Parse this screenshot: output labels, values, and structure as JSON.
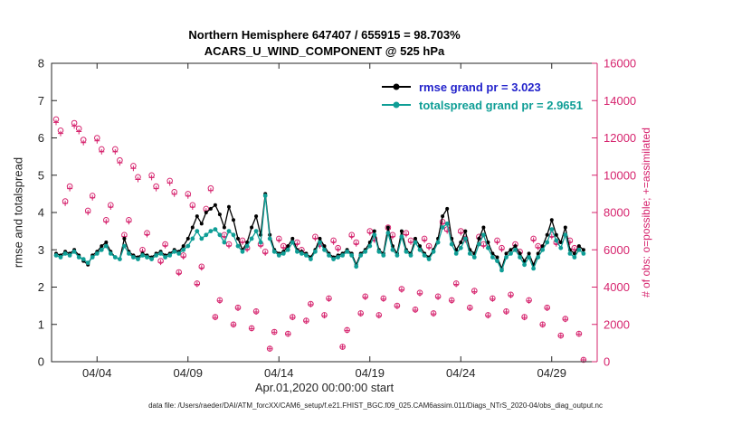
{
  "colors": {
    "rmse": "#000000",
    "totalspread": "#0f9e96",
    "obs": "#d6246e",
    "axis": "#262626",
    "background": "#ffffff"
  },
  "chart_data": {
    "type": "line+scatter",
    "title1": "Northern Hemisphere 647407 / 655915 = 98.703%",
    "title2": "ACARS_U_WIND_COMPONENT @ 525 hPa",
    "ylabel_left": "rmse and totalspread",
    "ylabel_right": "# of obs: o=possible; +=assimilated",
    "xlabel": "Apr.01,2020 00:00:00 start",
    "caption": "data file: /Users/raeder/DAI/ATM_forcXX/CAM6_setup/f.e21.FHIST_BGC.f09_025.CAM6assim.011/Diags_NTrS_2020-04/obs_diag_output.nc",
    "legend": [
      {
        "label": "rmse grand pr = 3.023",
        "line_color": "#000000",
        "text_color": "#2323cb"
      },
      {
        "label": "totalspread grand pr = 2.9651",
        "line_color": "#0f9e96",
        "text_color": "#0f9e96"
      }
    ],
    "xlim": [
      1.5,
      31.5
    ],
    "left_ylim": [
      0,
      8
    ],
    "right_ylim": [
      0,
      16000
    ],
    "x_start": 1.75,
    "x_step": 0.25,
    "x_tick_days": [
      4,
      9,
      14,
      19,
      24,
      29
    ],
    "x_tick_labels": [
      "04/04",
      "04/09",
      "04/14",
      "04/19",
      "04/24",
      "04/29"
    ],
    "left_ticks": [
      0,
      1,
      2,
      3,
      4,
      5,
      6,
      7,
      8
    ],
    "right_ticks": [
      0,
      2000,
      4000,
      6000,
      8000,
      10000,
      12000,
      14000,
      16000
    ],
    "assimilated_fraction": 0.987,
    "rmse": [
      2.9,
      2.85,
      2.95,
      2.9,
      3.0,
      2.85,
      2.7,
      2.6,
      2.85,
      2.95,
      3.1,
      3.2,
      2.95,
      2.8,
      2.75,
      3.3,
      2.95,
      2.85,
      2.8,
      2.9,
      2.85,
      2.8,
      2.9,
      2.95,
      2.85,
      2.9,
      3.0,
      2.95,
      3.1,
      3.3,
      3.6,
      3.9,
      3.7,
      4.0,
      4.1,
      4.2,
      3.95,
      3.6,
      4.15,
      3.8,
      3.3,
      3.0,
      3.2,
      3.6,
      3.9,
      3.4,
      4.5,
      3.4,
      3.0,
      2.9,
      2.95,
      3.1,
      3.3,
      3.0,
      2.95,
      2.9,
      2.8,
      3.0,
      3.3,
      3.1,
      2.9,
      2.8,
      2.85,
      2.9,
      3.0,
      2.9,
      2.6,
      2.9,
      3.0,
      3.2,
      3.5,
      3.0,
      2.9,
      3.6,
      3.1,
      2.9,
      3.5,
      3.0,
      2.9,
      3.3,
      3.1,
      2.9,
      2.8,
      3.0,
      3.3,
      3.9,
      4.1,
      3.3,
      3.0,
      3.2,
      3.5,
      3.0,
      2.9,
      3.3,
      3.6,
      3.2,
      2.9,
      2.8,
      2.5,
      2.9,
      3.0,
      3.1,
      2.9,
      2.7,
      2.9,
      2.6,
      2.9,
      3.1,
      3.4,
      3.8,
      3.4,
      3.2,
      3.6,
      3.0,
      2.9,
      3.1,
      3.0
    ],
    "totalspread": [
      2.85,
      2.8,
      2.9,
      2.85,
      2.95,
      2.8,
      2.75,
      2.65,
      2.8,
      2.9,
      3.0,
      3.1,
      2.9,
      2.8,
      2.75,
      3.1,
      2.9,
      2.8,
      2.75,
      2.85,
      2.8,
      2.75,
      2.85,
      2.9,
      2.8,
      2.85,
      2.95,
      2.9,
      3.0,
      3.1,
      3.3,
      3.5,
      3.3,
      3.4,
      3.5,
      3.55,
      3.4,
      3.2,
      3.5,
      3.4,
      3.1,
      2.95,
      3.1,
      3.3,
      3.5,
      3.2,
      4.45,
      3.3,
      2.95,
      2.85,
      2.9,
      3.0,
      3.2,
      2.95,
      2.9,
      2.85,
      2.75,
      2.95,
      3.2,
      3.0,
      2.85,
      2.75,
      2.8,
      2.85,
      2.95,
      2.85,
      2.55,
      2.85,
      2.95,
      3.1,
      3.4,
      2.95,
      2.85,
      3.45,
      3.0,
      2.85,
      3.35,
      2.95,
      2.85,
      3.2,
      3.0,
      2.85,
      2.75,
      2.95,
      3.2,
      3.6,
      3.7,
      3.15,
      2.9,
      3.05,
      3.3,
      2.9,
      2.8,
      3.15,
      3.4,
      3.05,
      2.8,
      2.7,
      2.45,
      2.8,
      2.9,
      3.0,
      2.8,
      2.6,
      2.8,
      2.5,
      2.8,
      3.0,
      3.2,
      3.55,
      3.25,
      3.05,
      3.4,
      2.9,
      2.8,
      3.0,
      2.9
    ],
    "possible_obs": [
      13000,
      12400,
      8600,
      9400,
      12800,
      12500,
      11900,
      8100,
      8900,
      12000,
      11400,
      7600,
      8400,
      11400,
      10800,
      6800,
      7600,
      10500,
      9900,
      6000,
      6900,
      10000,
      9400,
      5400,
      6300,
      9700,
      9100,
      4800,
      5700,
      9000,
      8400,
      4200,
      5100,
      8200,
      9300,
      2400,
      3300,
      6800,
      6300,
      2000,
      2900,
      6500,
      6100,
      1800,
      2700,
      6300,
      5900,
      700,
      1600,
      6600,
      6200,
      1500,
      2400,
      6400,
      6000,
      2200,
      3100,
      6700,
      6300,
      2500,
      3400,
      6500,
      6100,
      800,
      1700,
      6800,
      6400,
      2600,
      3500,
      7000,
      6600,
      2500,
      3400,
      7200,
      6800,
      3000,
      3900,
      6900,
      6500,
      2800,
      3700,
      6600,
      6200,
      2600,
      3500,
      7500,
      7100,
      3300,
      4200,
      7000,
      6600,
      2900,
      3800,
      6700,
      6300,
      2500,
      3400,
      6500,
      6100,
      2700,
      3600,
      6300,
      5900,
      2400,
      3300,
      6600,
      6200,
      2000,
      2900,
      6800,
      6400,
      1400,
      2300,
      6500,
      6100,
      1500,
      100
    ]
  }
}
